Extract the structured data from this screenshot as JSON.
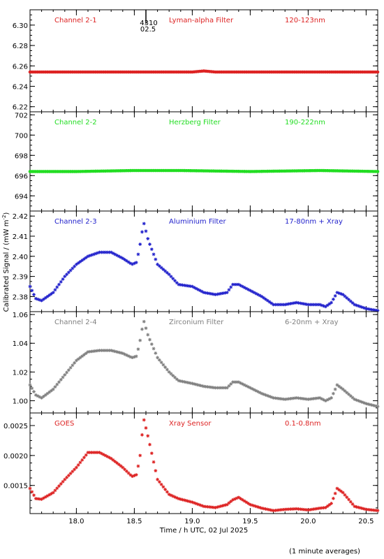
{
  "figure": {
    "ylabel": "Calibrated Signal / (mW m",
    "ylabel_sup": "-2",
    "ylabel_tail": ")",
    "xlabel": "Time / h UTC, 02 Jul 2025",
    "footnote": "(1 minute averages)",
    "marker_text_1": "4310",
    "marker_text_2": "02.5"
  },
  "chart_data": [
    {
      "type": "scatter",
      "panel": "Channel 2-1",
      "labels": [
        "Channel 2-1",
        "Lyman-alpha Filter",
        "120-123nm"
      ],
      "color": "#dd2222",
      "xlim": [
        17.6,
        20.6
      ],
      "ylim": [
        6.215,
        6.315
      ],
      "yticks": [
        6.22,
        6.24,
        6.26,
        6.28,
        6.3
      ],
      "yticklabels": [
        "6.22",
        "6.24",
        "6.26",
        "6.28",
        "6.30"
      ],
      "x": [
        17.6,
        18.0,
        18.5,
        19.0,
        19.1,
        19.2,
        19.5,
        20.0,
        20.6
      ],
      "y": [
        6.254,
        6.254,
        6.254,
        6.254,
        6.255,
        6.254,
        6.254,
        6.254,
        6.254
      ]
    },
    {
      "type": "scatter",
      "panel": "Channel 2-2",
      "labels": [
        "Channel 2-2",
        "Herzberg Filter",
        "190-222nm"
      ],
      "color": "#22dd22",
      "xlim": [
        17.6,
        20.6
      ],
      "ylim": [
        692.5,
        702.3
      ],
      "yticks": [
        694,
        696,
        698,
        700,
        702
      ],
      "yticklabels": [
        "694",
        "696",
        "698",
        "700",
        "702"
      ],
      "x": [
        17.6,
        18.0,
        18.5,
        18.9,
        19.5,
        20.1,
        20.6
      ],
      "y": [
        696.4,
        696.4,
        696.5,
        696.5,
        696.4,
        696.5,
        696.4
      ]
    },
    {
      "type": "scatter",
      "panel": "Channel 2-3",
      "labels": [
        "Channel 2-3",
        "Aluminium Filter",
        "17-80nm + Xray"
      ],
      "color": "#2222cc",
      "xlim": [
        17.6,
        20.6
      ],
      "ylim": [
        2.3725,
        2.4225
      ],
      "yticks": [
        2.38,
        2.39,
        2.4,
        2.41,
        2.42
      ],
      "yticklabels": [
        "2.38",
        "2.39",
        "2.40",
        "2.41",
        "2.42"
      ],
      "x": [
        17.6,
        17.65,
        17.7,
        17.8,
        17.9,
        18.0,
        18.1,
        18.2,
        18.3,
        18.4,
        18.48,
        18.52,
        18.55,
        18.58,
        18.62,
        18.7,
        18.8,
        18.88,
        19.0,
        19.1,
        19.2,
        19.3,
        19.35,
        19.4,
        19.5,
        19.6,
        19.7,
        19.8,
        19.9,
        20.0,
        20.1,
        20.15,
        20.2,
        20.25,
        20.3,
        20.4,
        20.5,
        20.6
      ],
      "y": [
        2.385,
        2.379,
        2.378,
        2.382,
        2.39,
        2.396,
        2.4,
        2.402,
        2.402,
        2.399,
        2.396,
        2.397,
        2.406,
        2.417,
        2.408,
        2.396,
        2.391,
        2.386,
        2.385,
        2.382,
        2.381,
        2.382,
        2.386,
        2.386,
        2.383,
        2.38,
        2.376,
        2.376,
        2.377,
        2.376,
        2.376,
        2.375,
        2.377,
        2.382,
        2.381,
        2.376,
        2.374,
        2.373
      ]
    },
    {
      "type": "scatter",
      "panel": "Channel 2-4",
      "labels": [
        "Channel 2-4",
        "Zirconium Filter",
        "6-20nm + Xray"
      ],
      "color": "#808080",
      "xlim": [
        17.6,
        20.6
      ],
      "ylim": [
        0.9915,
        1.062
      ],
      "yticks": [
        1.0,
        1.02,
        1.04,
        1.06
      ],
      "yticklabels": [
        "1.00",
        "1.02",
        "1.04",
        "1.06"
      ],
      "x": [
        17.6,
        17.65,
        17.7,
        17.8,
        17.9,
        18.0,
        18.1,
        18.2,
        18.3,
        18.4,
        18.48,
        18.52,
        18.55,
        18.58,
        18.62,
        18.7,
        18.8,
        18.88,
        19.0,
        19.1,
        19.2,
        19.3,
        19.35,
        19.4,
        19.5,
        19.6,
        19.7,
        19.8,
        19.9,
        20.0,
        20.1,
        20.15,
        20.2,
        20.25,
        20.3,
        20.4,
        20.5,
        20.6
      ],
      "y": [
        1.011,
        1.004,
        1.002,
        1.008,
        1.018,
        1.028,
        1.034,
        1.035,
        1.035,
        1.033,
        1.03,
        1.031,
        1.042,
        1.056,
        1.045,
        1.03,
        1.02,
        1.014,
        1.012,
        1.01,
        1.009,
        1.009,
        1.013,
        1.013,
        1.009,
        1.005,
        1.002,
        1.001,
        1.002,
        1.001,
        1.002,
        1.0,
        1.002,
        1.011,
        1.008,
        1.001,
        0.998,
        0.996
      ]
    },
    {
      "type": "scatter",
      "panel": "GOES",
      "labels": [
        "GOES",
        "Xray Sensor",
        "0.1-0.8nm"
      ],
      "color": "#dd2222",
      "xlim": [
        17.6,
        20.6
      ],
      "ylim": [
        0.00103,
        0.00271
      ],
      "yticks": [
        0.0015,
        0.002,
        0.0025
      ],
      "yticklabels": [
        "0.0015",
        "0.0020",
        "0.0025"
      ],
      "x": [
        17.6,
        17.65,
        17.7,
        17.8,
        17.9,
        18.0,
        18.1,
        18.2,
        18.3,
        18.4,
        18.48,
        18.52,
        18.55,
        18.58,
        18.62,
        18.7,
        18.8,
        18.88,
        19.0,
        19.1,
        19.2,
        19.3,
        19.35,
        19.4,
        19.5,
        19.6,
        19.7,
        19.8,
        19.9,
        20.0,
        20.1,
        20.15,
        20.2,
        20.25,
        20.3,
        20.4,
        20.5,
        20.6
      ],
      "y": [
        0.00145,
        0.00128,
        0.00127,
        0.00138,
        0.0016,
        0.0018,
        0.00205,
        0.00205,
        0.00195,
        0.0018,
        0.00165,
        0.00168,
        0.002,
        0.00262,
        0.0023,
        0.0016,
        0.00135,
        0.00128,
        0.00122,
        0.00115,
        0.00113,
        0.00118,
        0.00126,
        0.0013,
        0.00118,
        0.00112,
        0.00108,
        0.0011,
        0.00111,
        0.00109,
        0.00112,
        0.00113,
        0.0012,
        0.00145,
        0.00138,
        0.00115,
        0.0011,
        0.00108
      ]
    }
  ],
  "xaxis": {
    "ticks": [
      18.0,
      18.5,
      19.0,
      19.5,
      20.0,
      20.5
    ],
    "ticklabels": [
      "18.0",
      "18.5",
      "19.0",
      "19.5",
      "20.0",
      "20.5"
    ]
  }
}
